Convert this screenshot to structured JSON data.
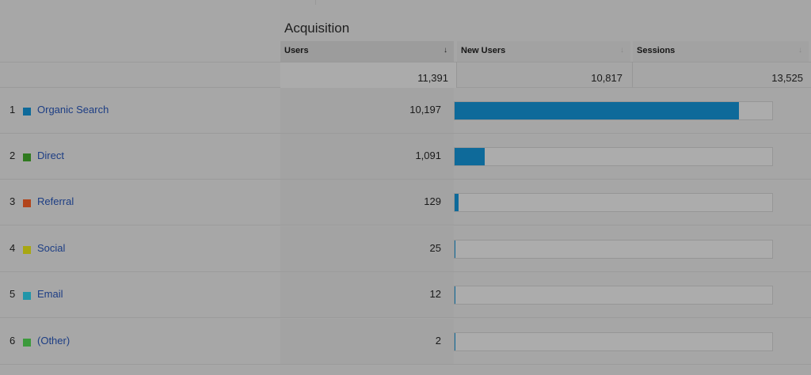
{
  "group": {
    "title": "Acquisition"
  },
  "columns": [
    {
      "label": "Users",
      "sort_icon": "sort-down-arrow-icon",
      "active": true
    },
    {
      "label": "New Users",
      "sort_icon": "sort-arrow-icon",
      "active": false
    },
    {
      "label": "Sessions",
      "sort_icon": "sort-arrow-icon",
      "active": false
    }
  ],
  "totals": {
    "users": "11,391",
    "new_users": "10,817",
    "sessions": "13,525"
  },
  "colors": {
    "bar": "#0e6a9a",
    "link": "#1c3d84"
  },
  "rows": [
    {
      "index": "1",
      "name": "Organic Search",
      "color": "#0e6a9a",
      "users": "10,197",
      "share": 0.895
    },
    {
      "index": "2",
      "name": "Direct",
      "color": "#2f7a1f",
      "users": "1,091",
      "share": 0.096
    },
    {
      "index": "3",
      "name": "Referral",
      "color": "#b2451c",
      "users": "129",
      "share": 0.0113
    },
    {
      "index": "4",
      "name": "Social",
      "color": "#a8a712",
      "users": "25",
      "share": 0.0022
    },
    {
      "index": "5",
      "name": "Email",
      "color": "#2196a9",
      "users": "12",
      "share": 0.0011
    },
    {
      "index": "6",
      "name": "(Other)",
      "color": "#3c9a3c",
      "users": "2",
      "share": 0.0002
    }
  ]
}
